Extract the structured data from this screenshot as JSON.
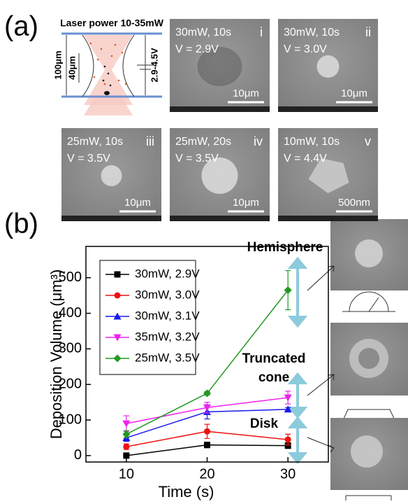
{
  "panel_a": {
    "label": "(a)",
    "schematic": {
      "title": "Laser power 10-35mW",
      "height": "100μm",
      "width": "40μm",
      "voltage": "2.9-4.5V"
    },
    "images": [
      {
        "condition": "30mW, 10s",
        "voltage": "V = 2.9V",
        "index": "i",
        "scale": "10μm"
      },
      {
        "condition": "30mW, 10s",
        "voltage": "V = 3.0V",
        "index": "ii",
        "scale": "10μm"
      },
      {
        "condition": "25mW, 10s",
        "voltage": "V = 3.5V",
        "index": "iii",
        "scale": "10μm"
      },
      {
        "condition": "25mW, 20s",
        "voltage": "V = 3.5V",
        "index": "iv",
        "scale": "10μm"
      },
      {
        "condition": "10mW, 10s",
        "voltage": "V = 4.4V",
        "index": "v",
        "scale": "500nm"
      }
    ]
  },
  "panel_b": {
    "label": "(b)",
    "annotations": {
      "hemisphere": "Hemisphere",
      "cone": [
        "Truncated",
        "cone"
      ],
      "disk": "Disk"
    }
  },
  "chart_data": {
    "type": "line",
    "x_label": "Time (s)",
    "y_label": "Deposition Volume (μm³)",
    "x": [
      10,
      20,
      30
    ],
    "xlim": [
      5,
      35
    ],
    "xticks": [
      10,
      20,
      30
    ],
    "ylim": [
      -18,
      588
    ],
    "yticks": [
      0,
      100,
      200,
      300,
      400,
      500
    ],
    "legend": "upper-left",
    "series": [
      {
        "name": "30mW, 2.9V",
        "color": "#000000",
        "marker": "square",
        "values": [
          0,
          30,
          28
        ],
        "errors": [
          3,
          8,
          8
        ]
      },
      {
        "name": "30mW, 3.0V",
        "color": "#ee1111",
        "marker": "circle",
        "values": [
          25,
          68,
          45
        ],
        "errors": [
          8,
          20,
          15
        ]
      },
      {
        "name": "30mW, 3.1V",
        "color": "#1a1aee",
        "marker": "triangle-up",
        "values": [
          50,
          123,
          130
        ],
        "errors": [
          10,
          20,
          5
        ]
      },
      {
        "name": "35mW, 3.2V",
        "color": "#ee22ee",
        "marker": "triangle-down",
        "values": [
          90,
          135,
          163
        ],
        "errors": [
          22,
          15,
          18
        ]
      },
      {
        "name": "25mW, 3.5V",
        "color": "#229922",
        "marker": "diamond",
        "values": [
          60,
          175,
          465
        ],
        "errors": [
          10,
          5,
          55
        ]
      }
    ]
  }
}
